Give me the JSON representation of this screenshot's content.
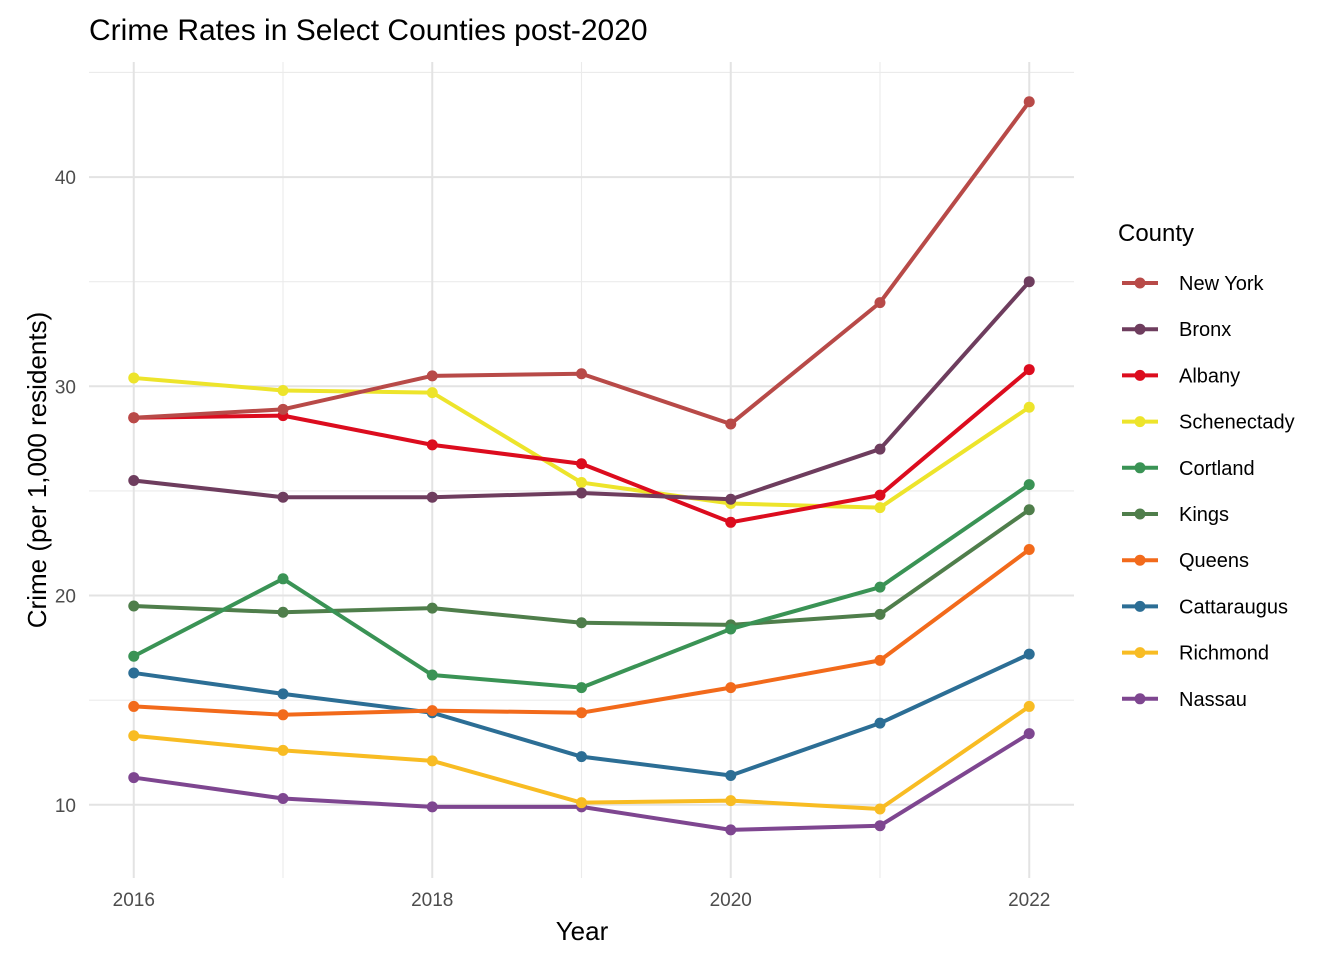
{
  "chart_data": {
    "type": "line",
    "title": "Crime Rates in Select Counties post-2020",
    "xlabel": "Year",
    "ylabel": "Crime (per 1,000 residents)",
    "legend_title": "County",
    "legend_position": "right",
    "grid": true,
    "xlim": [
      2015.7,
      2022.3
    ],
    "ylim": [
      6.5,
      45.5
    ],
    "x_ticks": [
      2016,
      2018,
      2020,
      2022
    ],
    "y_ticks": [
      10,
      20,
      30,
      40
    ],
    "x": [
      2016,
      2017,
      2018,
      2019,
      2020,
      2021,
      2022
    ],
    "series": [
      {
        "name": "New York",
        "color": "#B84A48",
        "values": [
          28.5,
          28.9,
          30.5,
          30.6,
          28.2,
          34.0,
          43.6
        ]
      },
      {
        "name": "Bronx",
        "color": "#6E3D5E",
        "values": [
          25.5,
          24.7,
          24.7,
          24.9,
          24.6,
          27.0,
          35.0
        ]
      },
      {
        "name": "Albany",
        "color": "#DC0C1E",
        "values": [
          28.5,
          28.6,
          27.2,
          26.3,
          23.5,
          24.8,
          30.8
        ]
      },
      {
        "name": "Schenectady",
        "color": "#EDE42B",
        "values": [
          30.4,
          29.8,
          29.7,
          25.4,
          24.4,
          24.2,
          29.0
        ]
      },
      {
        "name": "Cortland",
        "color": "#3A9355",
        "values": [
          17.1,
          20.8,
          16.2,
          15.6,
          18.4,
          20.4,
          25.3
        ]
      },
      {
        "name": "Kings",
        "color": "#4F7E4B",
        "values": [
          19.5,
          19.2,
          19.4,
          18.7,
          18.6,
          19.1,
          24.1
        ]
      },
      {
        "name": "Queens",
        "color": "#F26A1B",
        "values": [
          14.7,
          14.3,
          14.5,
          14.4,
          15.6,
          16.9,
          22.2
        ]
      },
      {
        "name": "Cattaraugus",
        "color": "#2C6E95",
        "values": [
          16.3,
          15.3,
          14.4,
          12.3,
          11.4,
          13.9,
          17.2
        ]
      },
      {
        "name": "Richmond",
        "color": "#F8BC23",
        "values": [
          13.3,
          12.6,
          12.1,
          10.1,
          10.2,
          9.8,
          14.7
        ]
      },
      {
        "name": "Nassau",
        "color": "#7E4690",
        "values": [
          11.3,
          10.3,
          9.9,
          9.9,
          8.8,
          9.0,
          13.4
        ]
      }
    ]
  }
}
